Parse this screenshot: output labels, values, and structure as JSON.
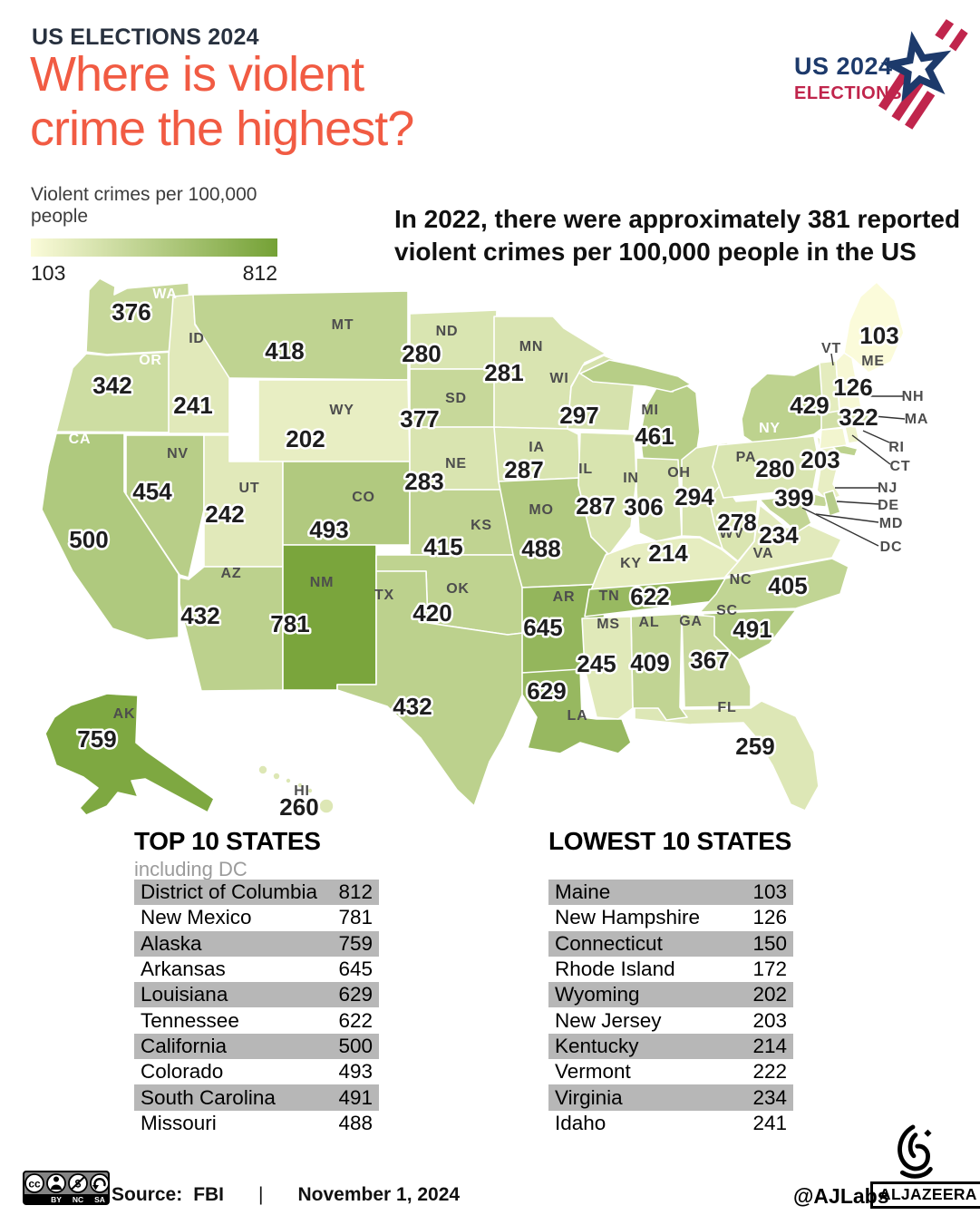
{
  "header": {
    "kicker": "US ELECTIONS 2024",
    "title_line1": "Where is violent",
    "title_line2": "crime the highest?"
  },
  "logo": {
    "line1": "US 2024",
    "line2": "ELECTIONS",
    "navy": "#1d3a6b",
    "red": "#c0254c"
  },
  "legend": {
    "label": "Violent crimes per 100,000 people",
    "min": "103",
    "max": "812",
    "color_low": "#fbfbda",
    "color_high": "#74a135"
  },
  "subtitle_line1": "In 2022, there were approximately 381 reported",
  "subtitle_line2": "violent crimes per 100,000 people in the US",
  "map": {
    "min_value": 103,
    "max_value": 812,
    "states": [
      {
        "abbr": "WA",
        "value": 376
      },
      {
        "abbr": "OR",
        "value": 342
      },
      {
        "abbr": "CA",
        "value": 500
      },
      {
        "abbr": "NV",
        "value": 454
      },
      {
        "abbr": "ID",
        "value": 241
      },
      {
        "abbr": "MT",
        "value": 418
      },
      {
        "abbr": "WY",
        "value": 202
      },
      {
        "abbr": "UT",
        "value": 242
      },
      {
        "abbr": "CO",
        "value": 493
      },
      {
        "abbr": "AZ",
        "value": 432
      },
      {
        "abbr": "NM",
        "value": 781
      },
      {
        "abbr": "ND",
        "value": 280
      },
      {
        "abbr": "SD",
        "value": 377
      },
      {
        "abbr": "NE",
        "value": 283
      },
      {
        "abbr": "KS",
        "value": 415
      },
      {
        "abbr": "OK",
        "value": 420
      },
      {
        "abbr": "TX",
        "value": 432
      },
      {
        "abbr": "MN",
        "value": 281
      },
      {
        "abbr": "IA",
        "value": 287
      },
      {
        "abbr": "MO",
        "value": 488
      },
      {
        "abbr": "AR",
        "value": 645
      },
      {
        "abbr": "LA",
        "value": 629
      },
      {
        "abbr": "WI",
        "value": 297
      },
      {
        "abbr": "IL",
        "value": 287
      },
      {
        "abbr": "MI",
        "value": 461
      },
      {
        "abbr": "IN",
        "value": 306
      },
      {
        "abbr": "OH",
        "value": 294
      },
      {
        "abbr": "KY",
        "value": 214
      },
      {
        "abbr": "TN",
        "value": 622
      },
      {
        "abbr": "WV",
        "value": 278
      },
      {
        "abbr": "VA",
        "value": 234
      },
      {
        "abbr": "NC",
        "value": 405
      },
      {
        "abbr": "SC",
        "value": 491
      },
      {
        "abbr": "GA",
        "value": 367
      },
      {
        "abbr": "FL",
        "value": 259
      },
      {
        "abbr": "AL",
        "value": 409
      },
      {
        "abbr": "MS",
        "value": 245
      },
      {
        "abbr": "NY",
        "value": 429
      },
      {
        "abbr": "PA",
        "value": 280
      },
      {
        "abbr": "NJ",
        "value": 203
      },
      {
        "abbr": "MD",
        "value": 399
      },
      {
        "abbr": "DE",
        "value": null,
        "fill": "#b7cd8b"
      },
      {
        "abbr": "CT",
        "value": 150,
        "value_shown": false
      },
      {
        "abbr": "RI",
        "value": 172,
        "value_shown": false
      },
      {
        "abbr": "MA",
        "value": 322
      },
      {
        "abbr": "VT",
        "value": 222,
        "value_shown": false
      },
      {
        "abbr": "NH",
        "value": 126
      },
      {
        "abbr": "ME",
        "value": 103
      },
      {
        "abbr": "AK",
        "value": 759
      },
      {
        "abbr": "HI",
        "value": 260
      },
      {
        "abbr": "DC",
        "value": null
      }
    ]
  },
  "tables": {
    "top": {
      "title": "TOP 10 STATES",
      "subtitle": "including DC",
      "rows": [
        [
          "District of Columbia",
          "812"
        ],
        [
          "New Mexico",
          "781"
        ],
        [
          "Alaska",
          "759"
        ],
        [
          "Arkansas",
          "645"
        ],
        [
          "Louisiana",
          "629"
        ],
        [
          "Tennessee",
          "622"
        ],
        [
          "California",
          "500"
        ],
        [
          "Colorado",
          "493"
        ],
        [
          "South Carolina",
          "491"
        ],
        [
          "Missouri",
          "488"
        ]
      ]
    },
    "lowest": {
      "title": "LOWEST 10 STATES",
      "rows": [
        [
          "Maine",
          "103"
        ],
        [
          "New Hampshire",
          "126"
        ],
        [
          "Connecticut",
          "150"
        ],
        [
          "Rhode Island",
          "172"
        ],
        [
          "Wyoming",
          "202"
        ],
        [
          "New Jersey",
          "203"
        ],
        [
          "Kentucky",
          "214"
        ],
        [
          "Vermont",
          "222"
        ],
        [
          "Virginia",
          "234"
        ],
        [
          "Idaho",
          "241"
        ]
      ]
    }
  },
  "footer": {
    "source_label": "Source:",
    "source": "FBI",
    "divider": "|",
    "date": "November 1, 2024",
    "credit": "@AJLabs",
    "brand": "ALJAZEERA",
    "license": [
      "BY",
      "NC",
      "SA"
    ]
  }
}
